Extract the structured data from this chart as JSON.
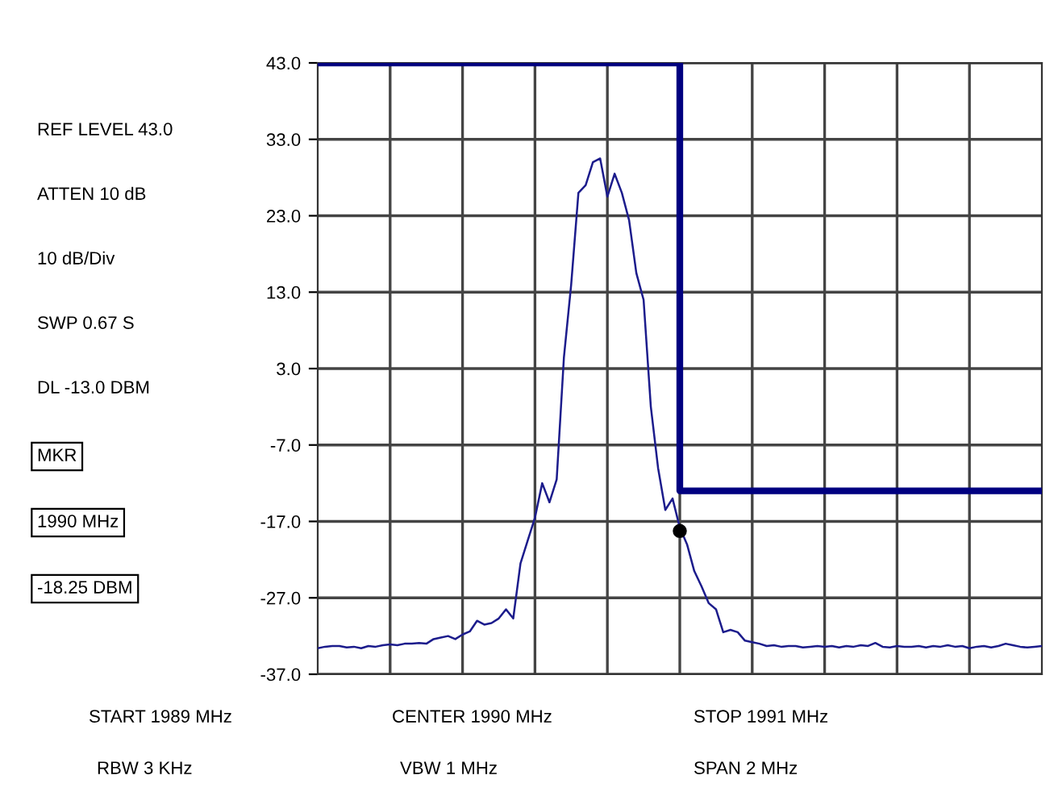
{
  "chart_data": {
    "type": "line",
    "annotations": [
      "REF LEVEL 43.0",
      "ATTEN 10 dB",
      "10 dB/Div",
      "SWP 0.67 S",
      "DL -13.0 DBM",
      "MKR",
      "1990 MHz",
      "-18.25 DBM",
      "START 1989 MHz",
      "RBW 3 KHz",
      "CENTER 1990 MHz",
      "VBW 1 MHz",
      "STOP 1991 MHz",
      "SPAN 2 MHz"
    ],
    "categories": [
      null,
      null,
      null,
      null,
      null,
      null,
      null,
      null,
      null,
      null,
      null,
      null,
      null,
      null,
      null,
      null,
      null,
      null,
      null,
      null,
      null,
      null,
      null,
      null,
      null,
      null,
      null,
      null,
      null,
      null,
      null,
      null,
      null,
      null,
      null,
      null,
      null,
      null,
      null,
      null,
      null,
      null,
      null,
      null,
      null,
      null,
      null,
      null,
      null,
      null,
      null,
      null,
      null,
      null,
      null,
      null,
      null,
      null,
      null,
      null,
      null,
      null,
      null,
      null,
      null,
      null,
      null,
      null,
      null,
      null,
      null,
      null,
      null,
      null,
      null,
      null,
      null,
      null,
      null,
      null,
      null,
      null,
      null,
      null,
      null,
      null,
      null,
      null,
      null,
      null,
      null,
      null,
      null,
      null,
      null,
      null,
      null,
      null,
      null,
      null,
      null
    ],
    "series": [
      {
        "color": "#1c1c8c",
        "values": [
          -33.6,
          -33.4,
          -33.3,
          -33.3,
          -33.5,
          -33.4,
          -33.6,
          -33.3,
          -33.4,
          -33.2,
          -33.1,
          -33.2,
          -33.0,
          -33.0,
          -32.9,
          -33.0,
          -32.4,
          -32.2,
          -32.0,
          -32.4,
          -31.8,
          -31.4,
          -30.0,
          -30.5,
          -30.3,
          -29.7,
          -28.5,
          -29.7,
          -22.5,
          -19.5,
          -16.5,
          -12.0,
          -14.5,
          -11.5,
          4.5,
          14.0,
          26.0,
          27.0,
          30.0,
          30.5,
          25.5,
          28.5,
          26.0,
          22.4,
          15.5,
          12.0,
          -2.0,
          -10.0,
          -15.5,
          -14.0,
          -17.8,
          -20.0,
          -23.5,
          -25.5,
          -27.7,
          -28.5,
          -31.5,
          -31.2,
          -31.5,
          -32.6,
          -32.8,
          -33.0,
          -33.3,
          -33.2,
          -33.4,
          -33.3,
          -33.3,
          -33.5,
          -33.4,
          -33.3,
          -33.4,
          -33.3,
          -33.5,
          -33.3,
          -33.4,
          -33.2,
          -33.3,
          -32.9,
          -33.4,
          -33.5,
          -33.3,
          -33.4,
          -33.4,
          -33.3,
          -33.5,
          -33.3,
          -33.4,
          -33.2,
          -33.4,
          -33.3,
          -33.6,
          -33.4,
          -33.3,
          -33.5,
          -33.3,
          -33.0,
          -33.2,
          -33.4,
          -33.5,
          -33.4,
          -33.3
        ]
      },
      {
        "type": "step",
        "color": "#000080",
        "values": [
          43.0,
          43.0,
          43.0,
          43.0,
          43.0,
          43.0,
          43.0,
          43.0,
          43.0,
          43.0,
          43.0,
          43.0,
          43.0,
          43.0,
          43.0,
          43.0,
          43.0,
          43.0,
          43.0,
          43.0,
          43.0,
          43.0,
          43.0,
          43.0,
          43.0,
          43.0,
          43.0,
          43.0,
          43.0,
          43.0,
          43.0,
          43.0,
          43.0,
          43.0,
          43.0,
          43.0,
          43.0,
          43.0,
          43.0,
          43.0,
          43.0,
          43.0,
          43.0,
          43.0,
          43.0,
          43.0,
          43.0,
          43.0,
          43.0,
          43.0,
          -13.0,
          -13.0,
          -13.0,
          -13.0,
          -13.0,
          -13.0,
          -13.0,
          -13.0,
          -13.0,
          -13.0,
          -13.0,
          -13.0,
          -13.0,
          -13.0,
          -13.0,
          -13.0,
          -13.0,
          -13.0,
          -13.0,
          -13.0,
          -13.0,
          -13.0,
          -13.0,
          -13.0,
          -13.0,
          -13.0,
          -13.0,
          -13.0,
          -13.0,
          -13.0,
          -13.0,
          -13.0,
          -13.0,
          -13.0,
          -13.0,
          -13.0,
          -13.0,
          -13.0,
          -13.0,
          -13.0,
          -13.0,
          -13.0,
          -13.0,
          -13.0,
          -13.0,
          -13.0,
          -13.0,
          -13.0,
          -13.0,
          -13.0,
          -13.0
        ]
      },
      {
        "type": "scatter",
        "color": "#000000",
        "marker": "circle",
        "values": [
          null,
          null,
          null,
          null,
          null,
          null,
          null,
          null,
          null,
          null,
          null,
          null,
          null,
          null,
          null,
          null,
          null,
          null,
          null,
          null,
          null,
          null,
          null,
          null,
          null,
          null,
          null,
          null,
          null,
          null,
          null,
          null,
          null,
          null,
          null,
          null,
          null,
          null,
          null,
          null,
          null,
          null,
          null,
          null,
          null,
          null,
          null,
          null,
          null,
          null,
          -18.25,
          null,
          null,
          null,
          null,
          null,
          null,
          null,
          null,
          null,
          null,
          null,
          null,
          null,
          null,
          null,
          null,
          null,
          null,
          null,
          null,
          null,
          null,
          null,
          null,
          null,
          null,
          null,
          null,
          null,
          null,
          null,
          null,
          null,
          null,
          null,
          null,
          null,
          null,
          null,
          null,
          null,
          null,
          null,
          null,
          null,
          null,
          null,
          null,
          null,
          null
        ]
      }
    ],
    "ylim": [
      -37,
      43
    ],
    "yticks": [
      {
        "value": -37,
        "label": "-37.0"
      },
      {
        "value": -27,
        "label": "-27.0"
      },
      {
        "value": -17,
        "label": "-17.0"
      },
      {
        "value": -7,
        "label": "-7.0"
      },
      {
        "value": 3,
        "label": "3.0"
      },
      {
        "value": 13,
        "label": "13.0"
      },
      {
        "value": 23,
        "label": "23.0"
      },
      {
        "value": 33,
        "label": "33.0"
      },
      {
        "value": 43,
        "label": "43.0"
      }
    ],
    "tick_labels": "y",
    "grid": true,
    "marker": "none",
    "legend": false
  }
}
